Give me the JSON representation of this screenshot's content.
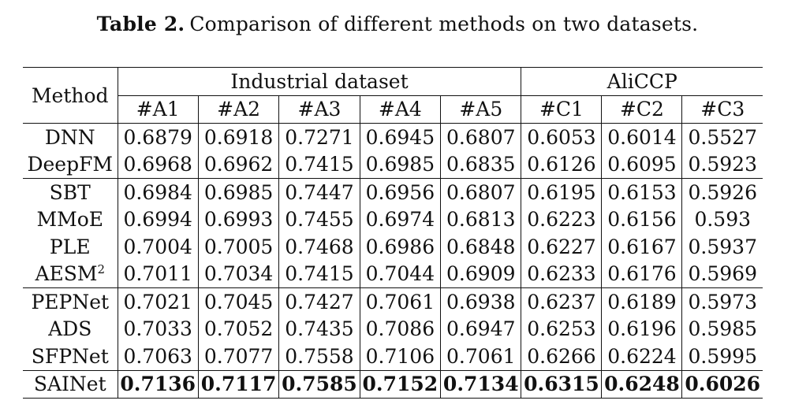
{
  "caption": {
    "label": "Table 2.",
    "text": "Comparison of different methods on two datasets."
  },
  "header": {
    "method": "Method",
    "group1": "Industrial dataset",
    "group2": "AliCCP",
    "sub": [
      "#A1",
      "#A2",
      "#A3",
      "#A4",
      "#A5",
      "#C1",
      "#C2",
      "#C3"
    ]
  },
  "rows": [
    {
      "method": "DNN",
      "values": [
        "0.6879",
        "0.6918",
        "0.7271",
        "0.6945",
        "0.6807",
        "0.6053",
        "0.6014",
        "0.5527"
      ]
    },
    {
      "method": "DeepFM",
      "values": [
        "0.6968",
        "0.6962",
        "0.7415",
        "0.6985",
        "0.6835",
        "0.6126",
        "0.6095",
        "0.5923"
      ]
    },
    {
      "method": "SBT",
      "values": [
        "0.6984",
        "0.6985",
        "0.7447",
        "0.6956",
        "0.6807",
        "0.6195",
        "0.6153",
        "0.5926"
      ]
    },
    {
      "method": "MMoE",
      "values": [
        "0.6994",
        "0.6993",
        "0.7455",
        "0.6974",
        "0.6813",
        "0.6223",
        "0.6156",
        "0.593"
      ]
    },
    {
      "method": "PLE",
      "values": [
        "0.7004",
        "0.7005",
        "0.7468",
        "0.6986",
        "0.6848",
        "0.6227",
        "0.6167",
        "0.5937"
      ]
    },
    {
      "method": "AESM",
      "method_sup": "2",
      "values": [
        "0.7011",
        "0.7034",
        "0.7415",
        "0.7044",
        "0.6909",
        "0.6233",
        "0.6176",
        "0.5969"
      ]
    },
    {
      "method": "PEPNet",
      "values": [
        "0.7021",
        "0.7045",
        "0.7427",
        "0.7061",
        "0.6938",
        "0.6237",
        "0.6189",
        "0.5973"
      ]
    },
    {
      "method": "ADS",
      "values": [
        "0.7033",
        "0.7052",
        "0.7435",
        "0.7086",
        "0.6947",
        "0.6253",
        "0.6196",
        "0.5985"
      ]
    },
    {
      "method": "SFPNet",
      "values": [
        "0.7063",
        "0.7077",
        "0.7558",
        "0.7106",
        "0.7061",
        "0.6266",
        "0.6224",
        "0.5995"
      ]
    },
    {
      "method": "SAINet",
      "values": [
        "0.7136",
        "0.7117",
        "0.7585",
        "0.7152",
        "0.7134",
        "0.6315",
        "0.6248",
        "0.6026"
      ]
    }
  ]
}
